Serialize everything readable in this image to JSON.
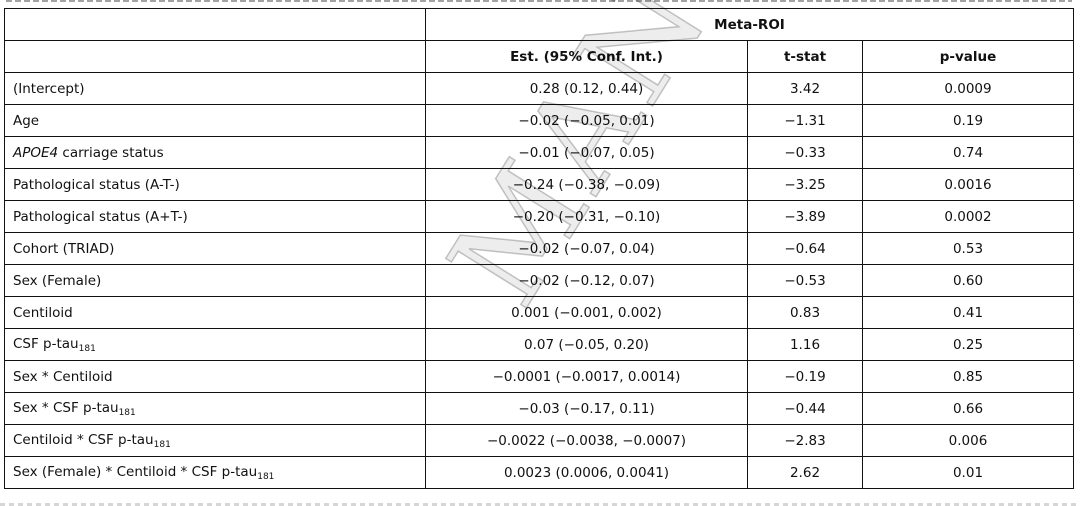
{
  "table": {
    "group_header": "Meta-ROI",
    "columns": [
      "",
      "Est. (95% Conf. Int.)",
      "t-stat",
      "p-value"
    ],
    "rows": [
      {
        "label": "(Intercept)",
        "sub": "",
        "est": "0.28 (0.12, 0.44)",
        "t": "3.42",
        "p": "0.0009"
      },
      {
        "label": "Age",
        "sub": "",
        "est": "−0.02 (−0.05, 0.01)",
        "t": "−1.31",
        "p": "0.19"
      },
      {
        "label": "APOE4",
        "label_rest": " carriage status",
        "sub": "",
        "est": "−0.01 (−0.07, 0.05)",
        "t": "−0.33",
        "p": "0.74"
      },
      {
        "label": "Pathological status (A-T-)",
        "sub": "",
        "est": "−0.24 (−0.38, −0.09)",
        "t": "−3.25",
        "p": "0.0016"
      },
      {
        "label": "Pathological status (A+T-)",
        "sub": "",
        "est": "−0.20 (−0.31, −0.10)",
        "t": "−3.89",
        "p": "0.0002"
      },
      {
        "label": "Cohort (TRIAD)",
        "sub": "",
        "est": "−0.02 (−0.07, 0.04)",
        "t": "−0.64",
        "p": "0.53"
      },
      {
        "label": "Sex (Female)",
        "sub": "",
        "est": "−0.02 (−0.12, 0.07)",
        "t": "−0.53",
        "p": "0.60"
      },
      {
        "label": "Centiloid",
        "sub": "",
        "est": "0.001 (−0.001, 0.002)",
        "t": "0.83",
        "p": "0.41"
      },
      {
        "label": "CSF p-tau",
        "sub": "181",
        "est": "0.07 (−0.05, 0.20)",
        "t": "1.16",
        "p": "0.25"
      },
      {
        "label": "Sex * Centiloid",
        "sub": "",
        "est": "−0.0001 (−0.0017, 0.0014)",
        "t": "−0.19",
        "p": "0.85"
      },
      {
        "label": "Sex * CSF p-tau",
        "sub": "181",
        "est": "−0.03 (−0.17, 0.11)",
        "t": "−0.44",
        "p": "0.66"
      },
      {
        "label": "Centiloid * CSF p-tau",
        "sub": "181",
        "est": "−0.0022 (−0.0038, −0.0007)",
        "t": "−2.83",
        "p": "0.006"
      },
      {
        "label": "Sex (Female) * Centiloid * CSF p-tau",
        "sub": "181",
        "est": "0.0023 (0.0006, 0.0041)",
        "t": "2.62",
        "p": "0.01"
      }
    ]
  },
  "watermark": "MANUSCRIPT"
}
